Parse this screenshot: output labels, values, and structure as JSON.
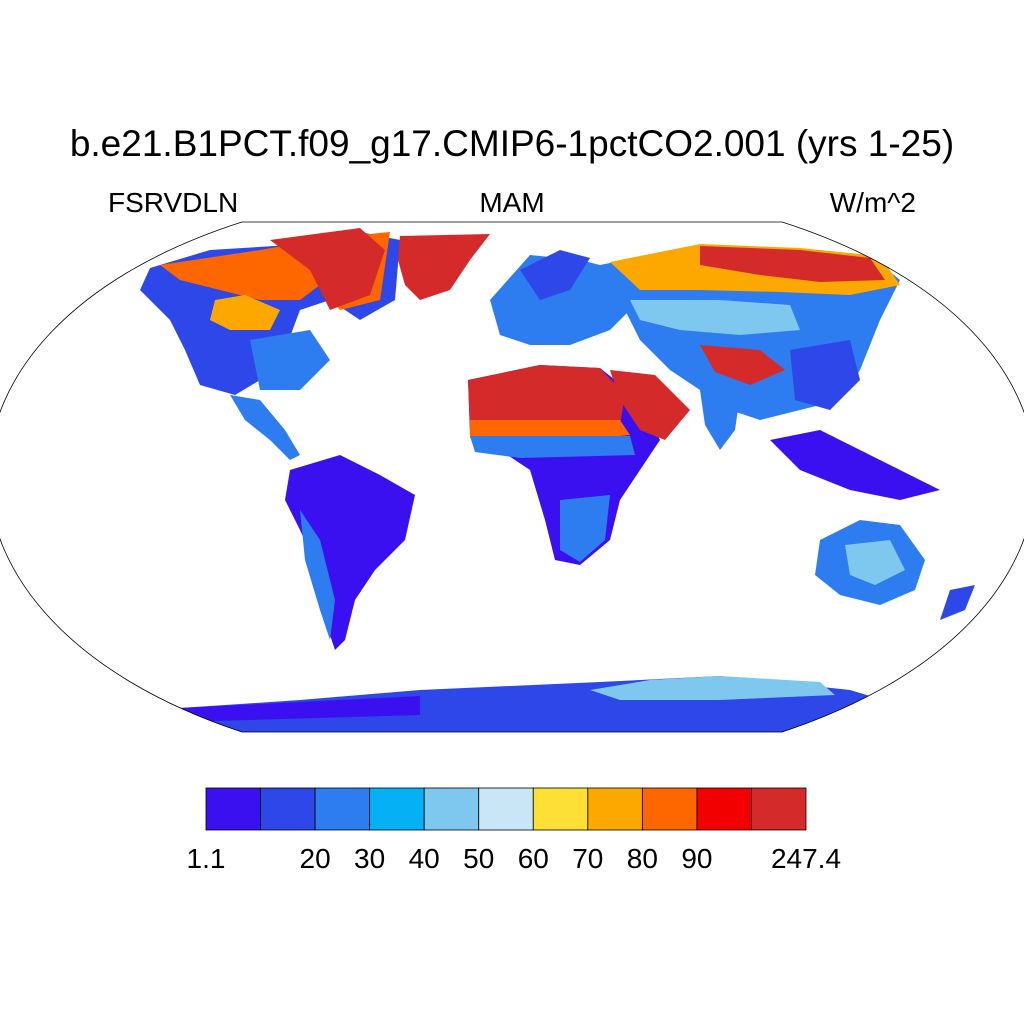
{
  "title": "b.e21.B1PCT.f09_g17.CMIP6-1pctCO2.001 (yrs 1-25)",
  "subtitle_left": "FSRVDLN",
  "subtitle_center": "MAM",
  "subtitle_right": "W/m^2",
  "projection": "Robinson",
  "colorbar": {
    "boundaries": [
      "1.1",
      "",
      "20",
      "30",
      "40",
      "50",
      "60",
      "70",
      "80",
      "90",
      "",
      "247.4"
    ],
    "colors": [
      "#3b10f0",
      "#2e47e8",
      "#2d7df0",
      "#06b0f5",
      "#7ec8ef",
      "#c9e6f6",
      "#fde035",
      "#fda800",
      "#fe6600",
      "#f20000",
      "#d42a2a"
    ]
  },
  "land_color_notes": {
    "high_values": "Sahara, Arabia, Greenland, Canadian Arctic, Tibet, northern Siberia",
    "low_values": "Amazon, central Africa, Southeast Asia, Antarctic coast"
  }
}
